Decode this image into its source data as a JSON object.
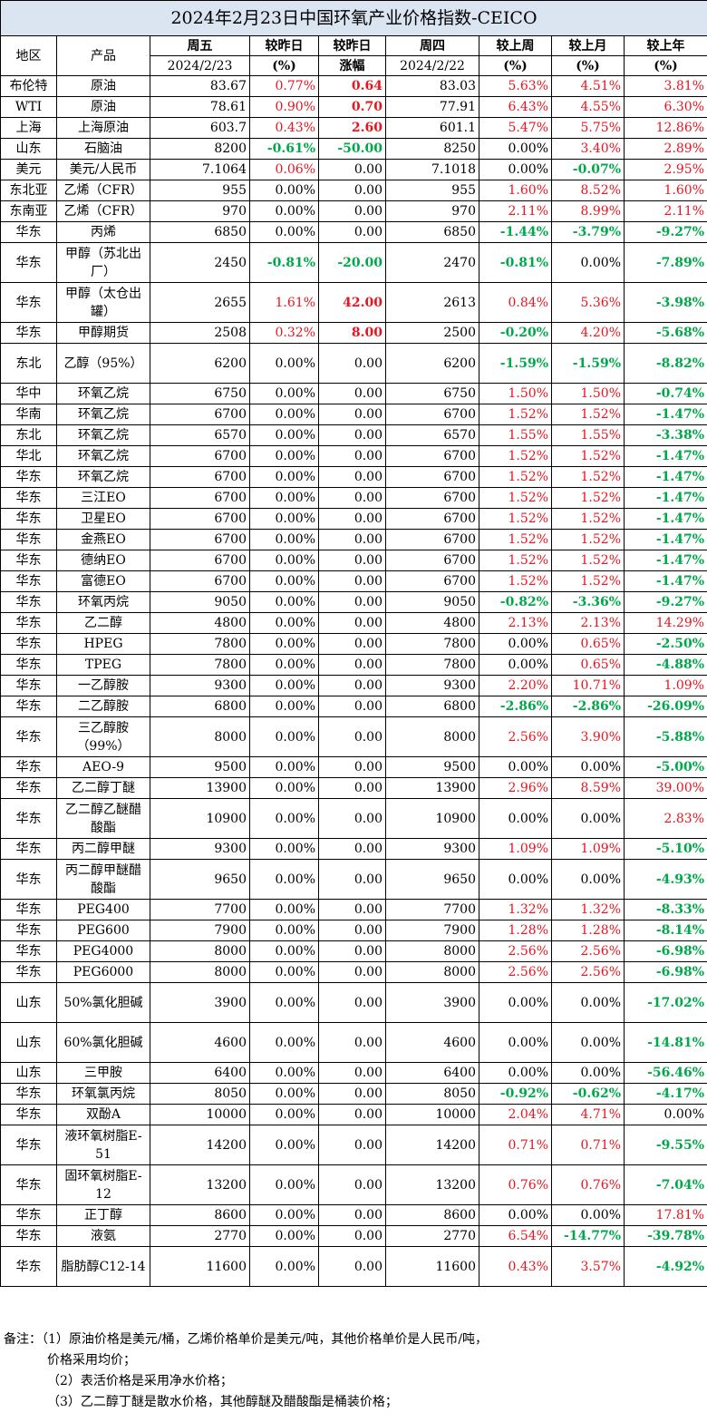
{
  "title": "2024年2月23日中国环氧产业价格指数-CEICO",
  "header": {
    "region": "地区",
    "product": "产品",
    "fri": "周五",
    "fri_date": "2024/2/23",
    "vs_yday": "较昨日",
    "pct": "(%)",
    "vs_yday2": "较昨日",
    "rise": "涨幅",
    "thu": "周四",
    "thu_date": "2024/2/22",
    "vs_week": "较上周",
    "vs_month": "较上月",
    "vs_year": "较上年"
  },
  "rows": [
    {
      "region": "布伦特",
      "product": "原油",
      "fri": "83.67",
      "dpct": "0.77%",
      "dabs": "0.64",
      "thu": "83.03",
      "w": "5.63%",
      "m": "4.51%",
      "y": "3.81%"
    },
    {
      "region": "WTI",
      "product": "原油",
      "fri": "78.61",
      "dpct": "0.90%",
      "dabs": "0.70",
      "thu": "77.91",
      "w": "6.43%",
      "m": "4.55%",
      "y": "6.30%"
    },
    {
      "region": "上海",
      "product": "上海原油",
      "fri": "603.7",
      "dpct": "0.43%",
      "dabs": "2.60",
      "thu": "601.1",
      "w": "5.47%",
      "m": "5.75%",
      "y": "12.86%"
    },
    {
      "region": "山东",
      "product": "石脑油",
      "fri": "8200",
      "dpct": "-0.61%",
      "dabs": "-50.00",
      "thu": "8250",
      "w": "0.00%",
      "m": "3.40%",
      "y": "2.89%"
    },
    {
      "region": "美元",
      "product": "美元/人民币",
      "fri": "7.1064",
      "dpct": "0.06%",
      "dabs": "0.00",
      "thu": "7.1018",
      "w": "0.00%",
      "m": "-0.07%",
      "y": "2.95%"
    },
    {
      "region": "东北亚",
      "product": "乙烯（CFR）",
      "fri": "955",
      "dpct": "0.00%",
      "dabs": "0.00",
      "thu": "955",
      "w": "1.60%",
      "m": "8.52%",
      "y": "1.60%"
    },
    {
      "region": "东南亚",
      "product": "乙烯（CFR）",
      "fri": "970",
      "dpct": "0.00%",
      "dabs": "0.00",
      "thu": "970",
      "w": "2.11%",
      "m": "8.99%",
      "y": "2.11%"
    },
    {
      "region": "华东",
      "product": "丙烯",
      "fri": "6850",
      "dpct": "0.00%",
      "dabs": "0.00",
      "thu": "6850",
      "w": "-1.44%",
      "m": "-3.79%",
      "y": "-9.27%"
    },
    {
      "region": "华东",
      "product": "甲醇（苏北出厂）",
      "fri": "2450",
      "dpct": "-0.81%",
      "dabs": "-20.00",
      "thu": "2470",
      "w": "-0.81%",
      "m": "0.00%",
      "y": "-7.89%"
    },
    {
      "region": "华东",
      "product": "甲醇（太仓出罐）",
      "fri": "2655",
      "dpct": "1.61%",
      "dabs": "42.00",
      "thu": "2613",
      "w": "0.84%",
      "m": "5.36%",
      "y": "-3.98%"
    },
    {
      "region": "华东",
      "product": "甲醇期货",
      "fri": "2508",
      "dpct": "0.32%",
      "dabs": "8.00",
      "thu": "2500",
      "w": "-0.20%",
      "m": "4.20%",
      "y": "-5.68%"
    },
    {
      "region": "东北",
      "product": "乙醇（95%）",
      "fri": "6200",
      "dpct": "0.00%",
      "dabs": "0.00",
      "thu": "6200",
      "w": "-1.59%",
      "m": "-1.59%",
      "y": "-8.82%"
    },
    {
      "region": "华中",
      "product": "环氧乙烷",
      "fri": "6750",
      "dpct": "0.00%",
      "dabs": "0.00",
      "thu": "6750",
      "w": "1.50%",
      "m": "1.50%",
      "y": "-0.74%"
    },
    {
      "region": "华南",
      "product": "环氧乙烷",
      "fri": "6700",
      "dpct": "0.00%",
      "dabs": "0.00",
      "thu": "6700",
      "w": "1.52%",
      "m": "1.52%",
      "y": "-1.47%"
    },
    {
      "region": "东北",
      "product": "环氧乙烷",
      "fri": "6570",
      "dpct": "0.00%",
      "dabs": "0.00",
      "thu": "6570",
      "w": "1.55%",
      "m": "1.55%",
      "y": "-3.38%"
    },
    {
      "region": "华北",
      "product": "环氧乙烷",
      "fri": "6700",
      "dpct": "0.00%",
      "dabs": "0.00",
      "thu": "6700",
      "w": "1.52%",
      "m": "1.52%",
      "y": "-1.47%"
    },
    {
      "region": "华东",
      "product": "环氧乙烷",
      "fri": "6700",
      "dpct": "0.00%",
      "dabs": "0.00",
      "thu": "6700",
      "w": "1.52%",
      "m": "1.52%",
      "y": "-1.47%"
    },
    {
      "region": "华东",
      "product": "三江EO",
      "fri": "6700",
      "dpct": "0.00%",
      "dabs": "0.00",
      "thu": "6700",
      "w": "1.52%",
      "m": "1.52%",
      "y": "-1.47%"
    },
    {
      "region": "华东",
      "product": "卫星EO",
      "fri": "6700",
      "dpct": "0.00%",
      "dabs": "0.00",
      "thu": "6700",
      "w": "1.52%",
      "m": "1.52%",
      "y": "-1.47%"
    },
    {
      "region": "华东",
      "product": "金燕EO",
      "fri": "6700",
      "dpct": "0.00%",
      "dabs": "0.00",
      "thu": "6700",
      "w": "1.52%",
      "m": "1.52%",
      "y": "-1.47%"
    },
    {
      "region": "华东",
      "product": "德纳EO",
      "fri": "6700",
      "dpct": "0.00%",
      "dabs": "0.00",
      "thu": "6700",
      "w": "1.52%",
      "m": "1.52%",
      "y": "-1.47%"
    },
    {
      "region": "华东",
      "product": "富德EO",
      "fri": "6700",
      "dpct": "0.00%",
      "dabs": "0.00",
      "thu": "6700",
      "w": "1.52%",
      "m": "1.52%",
      "y": "-1.47%"
    },
    {
      "region": "华东",
      "product": "环氧丙烷",
      "fri": "9050",
      "dpct": "0.00%",
      "dabs": "0.00",
      "thu": "9050",
      "w": "-0.82%",
      "m": "-3.36%",
      "y": "-9.27%"
    },
    {
      "region": "华东",
      "product": "乙二醇",
      "fri": "4800",
      "dpct": "0.00%",
      "dabs": "0.00",
      "thu": "4800",
      "w": "2.13%",
      "m": "2.13%",
      "y": "14.29%"
    },
    {
      "region": "华东",
      "product": "HPEG",
      "fri": "7800",
      "dpct": "0.00%",
      "dabs": "0.00",
      "thu": "7800",
      "w": "0.00%",
      "m": "0.65%",
      "y": "-2.50%"
    },
    {
      "region": "华东",
      "product": "TPEG",
      "fri": "7800",
      "dpct": "0.00%",
      "dabs": "0.00",
      "thu": "7800",
      "w": "0.00%",
      "m": "0.65%",
      "y": "-4.88%"
    },
    {
      "region": "华东",
      "product": "一乙醇胺",
      "fri": "9300",
      "dpct": "0.00%",
      "dabs": "0.00",
      "thu": "9300",
      "w": "2.20%",
      "m": "10.71%",
      "y": "1.09%"
    },
    {
      "region": "华东",
      "product": "二乙醇胺",
      "fri": "6800",
      "dpct": "0.00%",
      "dabs": "0.00",
      "thu": "6800",
      "w": "-2.86%",
      "m": "-2.86%",
      "y": "-26.09%"
    },
    {
      "region": "华东",
      "product": "三乙醇胺（99%）",
      "fri": "8000",
      "dpct": "0.00%",
      "dabs": "0.00",
      "thu": "8000",
      "w": "2.56%",
      "m": "3.90%",
      "y": "-5.88%"
    },
    {
      "region": "华东",
      "product": "AEO-9",
      "fri": "9500",
      "dpct": "0.00%",
      "dabs": "0.00",
      "thu": "9500",
      "w": "0.00%",
      "m": "0.00%",
      "y": "-5.00%"
    },
    {
      "region": "华东",
      "product": "乙二醇丁醚",
      "fri": "13900",
      "dpct": "0.00%",
      "dabs": "0.00",
      "thu": "13900",
      "w": "2.96%",
      "m": "8.59%",
      "y": "39.00%"
    },
    {
      "region": "华东",
      "product": "乙二醇乙醚醋酸酯",
      "fri": "10900",
      "dpct": "0.00%",
      "dabs": "0.00",
      "thu": "10900",
      "w": "0.00%",
      "m": "0.00%",
      "y": "2.83%"
    },
    {
      "region": "华东",
      "product": "丙二醇甲醚",
      "fri": "9300",
      "dpct": "0.00%",
      "dabs": "0.00",
      "thu": "9300",
      "w": "1.09%",
      "m": "1.09%",
      "y": "-5.10%"
    },
    {
      "region": "华东",
      "product": "丙二醇甲醚醋酸酯",
      "fri": "9650",
      "dpct": "0.00%",
      "dabs": "0.00",
      "thu": "9650",
      "w": "0.00%",
      "m": "0.00%",
      "y": "-4.93%"
    },
    {
      "region": "华东",
      "product": "PEG400",
      "fri": "7700",
      "dpct": "0.00%",
      "dabs": "0.00",
      "thu": "7700",
      "w": "1.32%",
      "m": "1.32%",
      "y": "-8.33%"
    },
    {
      "region": "华东",
      "product": "PEG600",
      "fri": "7900",
      "dpct": "0.00%",
      "dabs": "0.00",
      "thu": "7900",
      "w": "1.28%",
      "m": "1.28%",
      "y": "-8.14%"
    },
    {
      "region": "华东",
      "product": "PEG4000",
      "fri": "8000",
      "dpct": "0.00%",
      "dabs": "0.00",
      "thu": "8000",
      "w": "2.56%",
      "m": "2.56%",
      "y": "-6.98%"
    },
    {
      "region": "华东",
      "product": "PEG6000",
      "fri": "8000",
      "dpct": "0.00%",
      "dabs": "0.00",
      "thu": "8000",
      "w": "2.56%",
      "m": "2.56%",
      "y": "-6.98%"
    },
    {
      "region": "山东",
      "product": "50%氯化胆碱",
      "fri": "3900",
      "dpct": "0.00%",
      "dabs": "0.00",
      "thu": "3900",
      "w": "0.00%",
      "m": "0.00%",
      "y": "-17.02%"
    },
    {
      "region": "山东",
      "product": "60%氯化胆碱",
      "fri": "4600",
      "dpct": "0.00%",
      "dabs": "0.00",
      "thu": "4600",
      "w": "0.00%",
      "m": "0.00%",
      "y": "-14.81%"
    },
    {
      "region": "山东",
      "product": "三甲胺",
      "fri": "6400",
      "dpct": "0.00%",
      "dabs": "0.00",
      "thu": "6400",
      "w": "0.00%",
      "m": "0.00%",
      "y": "-56.46%"
    },
    {
      "region": "华东",
      "product": "环氧氯丙烷",
      "fri": "8050",
      "dpct": "0.00%",
      "dabs": "0.00",
      "thu": "8050",
      "w": "-0.92%",
      "m": "-0.62%",
      "y": "-4.17%"
    },
    {
      "region": "华东",
      "product": "双酚A",
      "fri": "10000",
      "dpct": "0.00%",
      "dabs": "0.00",
      "thu": "10000",
      "w": "2.04%",
      "m": "4.71%",
      "y": "0.00%"
    },
    {
      "region": "华东",
      "product": "液环氧树脂E-51",
      "fri": "14200",
      "dpct": "0.00%",
      "dabs": "0.00",
      "thu": "14200",
      "w": "0.71%",
      "m": "0.71%",
      "y": "-9.55%"
    },
    {
      "region": "华东",
      "product": "固环氧树脂E-12",
      "fri": "13200",
      "dpct": "0.00%",
      "dabs": "0.00",
      "thu": "13200",
      "w": "0.76%",
      "m": "0.76%",
      "y": "-7.04%"
    },
    {
      "region": "华东",
      "product": "正丁醇",
      "fri": "8600",
      "dpct": "0.00%",
      "dabs": "0.00",
      "thu": "8600",
      "w": "0.00%",
      "m": "0.00%",
      "y": "17.81%"
    },
    {
      "region": "华东",
      "product": "液氨",
      "fri": "2770",
      "dpct": "0.00%",
      "dabs": "0.00",
      "thu": "2770",
      "w": "6.54%",
      "m": "-14.77%",
      "y": "-39.78%"
    },
    {
      "region": "华东",
      "product": "脂肪醇C12-14",
      "fri": "11600",
      "dpct": "0.00%",
      "dabs": "0.00",
      "thu": "11600",
      "w": "0.43%",
      "m": "3.57%",
      "y": "-4.92%"
    }
  ],
  "notes": [
    "备注：（1）原油价格是美元/桶，乙烯价格单价是美元/吨，其他价格单价是人民币/吨，",
    "价格采用均价；",
    "（2）表活价格是采用净水价格；",
    "（3）乙二醇丁醚是散水价格，其他醇醚及醋酸酯是桶装价格；"
  ],
  "colors": {
    "up": "#e8151f",
    "down": "#00a84a",
    "title_bg": "#dbe5f1"
  }
}
